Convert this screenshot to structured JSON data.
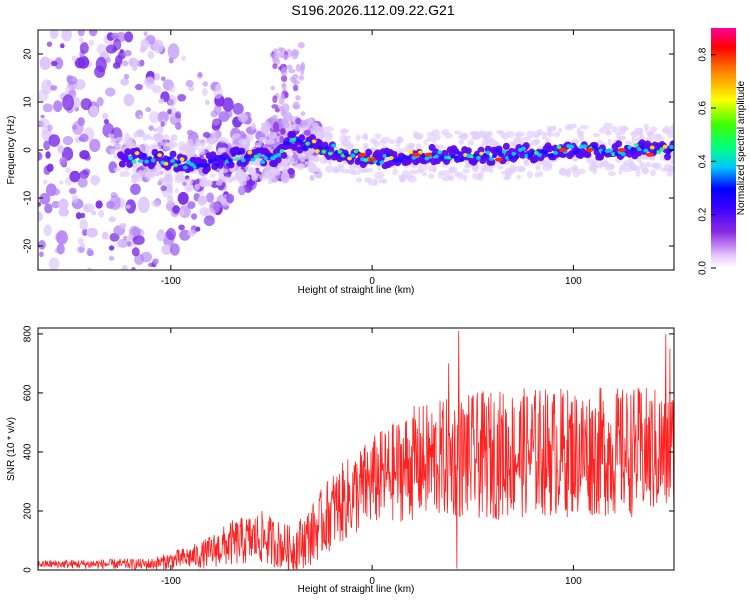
{
  "title": "S196.2026.112.09.22.G21",
  "chart_data": [
    {
      "type": "heatmap",
      "title": "S196.2026.112.09.22.G21",
      "xlabel": "Height of straight line (km)",
      "ylabel": "Frequency (Hz)",
      "xlim": [
        -166,
        150
      ],
      "ylim": [
        -25,
        25
      ],
      "xticks": [
        -100,
        0,
        100
      ],
      "yticks": [
        -20,
        -10,
        0,
        10,
        20
      ],
      "colorbar": {
        "label": "Normalized spectral amplitude",
        "range": [
          0.0,
          0.9
        ],
        "ticks": [
          "0.0",
          "0.2",
          "0.4",
          "0.6",
          "0.8"
        ],
        "colormap": [
          "#ffffff",
          "#e8c8ff",
          "#8a2be2",
          "#3a00ff",
          "#0000ff",
          "#00c8ff",
          "#00ff80",
          "#40ff00",
          "#ffff00",
          "#ff8000",
          "#ff0000",
          "#ff00a0"
        ]
      },
      "ridge": {
        "freq_track_hz": [
          {
            "x": -120,
            "y": -1.5
          },
          {
            "x": -100,
            "y": -2.0
          },
          {
            "x": -90,
            "y": -3.5
          },
          {
            "x": -75,
            "y": -2.0
          },
          {
            "x": -60,
            "y": -1.0
          },
          {
            "x": -50,
            "y": -2.0
          },
          {
            "x": -40,
            "y": 2.0
          },
          {
            "x": -20,
            "y": 0.0
          },
          {
            "x": 0,
            "y": -2.0
          },
          {
            "x": 30,
            "y": -1.0
          },
          {
            "x": 60,
            "y": -1.0
          },
          {
            "x": 100,
            "y": 0.0
          },
          {
            "x": 150,
            "y": 0.0
          }
        ],
        "peak_amplitude": 0.85
      }
    },
    {
      "type": "line",
      "xlabel": "Height of straight line (km)",
      "ylabel": "SNR (10 * v/v)",
      "xlim": [
        -166,
        150
      ],
      "ylim": [
        0,
        820
      ],
      "xticks": [
        -100,
        0,
        100
      ],
      "yticks": [
        0,
        200,
        400,
        600,
        800
      ],
      "line_color": "#ff2020",
      "series": [
        {
          "name": "SNR",
          "envelope_x": [
            -166,
            -110,
            -85,
            -70,
            -55,
            -40,
            -30,
            -20,
            -10,
            0,
            10,
            20,
            40,
            60,
            80,
            100,
            120,
            150
          ],
          "envelope_mean": [
            20,
            20,
            50,
            90,
            110,
            70,
            120,
            200,
            250,
            300,
            330,
            360,
            380,
            390,
            400,
            400,
            400,
            400
          ],
          "envelope_amplitude": [
            10,
            15,
            35,
            60,
            70,
            60,
            80,
            100,
            110,
            120,
            130,
            150,
            160,
            170,
            170,
            170,
            170,
            170
          ],
          "peaks": [
            {
              "x": 43,
              "y": 810
            },
            {
              "x": 146,
              "y": 800
            },
            {
              "x": 148,
              "y": 750
            },
            {
              "x": 38,
              "y": 700
            }
          ]
        }
      ]
    }
  ]
}
